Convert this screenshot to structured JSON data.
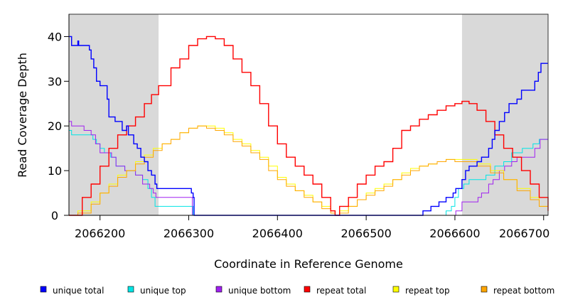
{
  "chart_data": {
    "type": "line",
    "title": "",
    "xlabel": "Coordinate in Reference Genome",
    "ylabel": "Read Coverage Depth",
    "xlim": [
      2066165,
      2066705
    ],
    "ylim": [
      0,
      45
    ],
    "x_ticks": [
      "2066200",
      "2066300",
      "2066400",
      "2066500",
      "2066600",
      "2066700"
    ],
    "y_ticks": [
      "0",
      "10",
      "20",
      "30",
      "40"
    ],
    "shaded_regions": [
      [
        2066165,
        2066266
      ],
      [
        2066608,
        2066705
      ]
    ],
    "grid": false,
    "legend_position": "bottom",
    "series": [
      {
        "name": "unique total",
        "color": "#0000ff",
        "points": [
          [
            2066165,
            40
          ],
          [
            2066168,
            38
          ],
          [
            2066175,
            39
          ],
          [
            2066176,
            38
          ],
          [
            2066188,
            37
          ],
          [
            2066190,
            35
          ],
          [
            2066193,
            33
          ],
          [
            2066196,
            30
          ],
          [
            2066200,
            29
          ],
          [
            2066208,
            26
          ],
          [
            2066210,
            22
          ],
          [
            2066217,
            21
          ],
          [
            2066225,
            19
          ],
          [
            2066230,
            20
          ],
          [
            2066232,
            18
          ],
          [
            2066238,
            16
          ],
          [
            2066242,
            15
          ],
          [
            2066246,
            13
          ],
          [
            2066250,
            12
          ],
          [
            2066254,
            10
          ],
          [
            2066258,
            9
          ],
          [
            2066262,
            7
          ],
          [
            2066264,
            6
          ],
          [
            2066300,
            6
          ],
          [
            2066303,
            5
          ],
          [
            2066305,
            4
          ],
          [
            2066306,
            0
          ],
          [
            2066563,
            0
          ],
          [
            2066564,
            1
          ],
          [
            2066573,
            2
          ],
          [
            2066582,
            3
          ],
          [
            2066590,
            4
          ],
          [
            2066598,
            5
          ],
          [
            2066601,
            6
          ],
          [
            2066608,
            8
          ],
          [
            2066612,
            10
          ],
          [
            2066616,
            11
          ],
          [
            2066625,
            12
          ],
          [
            2066630,
            13
          ],
          [
            2066638,
            15
          ],
          [
            2066642,
            17
          ],
          [
            2066645,
            19
          ],
          [
            2066650,
            21
          ],
          [
            2066656,
            23
          ],
          [
            2066661,
            25
          ],
          [
            2066670,
            26
          ],
          [
            2066675,
            28
          ],
          [
            2066690,
            30
          ],
          [
            2066694,
            32
          ],
          [
            2066697,
            34
          ],
          [
            2066705,
            34
          ]
        ]
      },
      {
        "name": "unique top",
        "color": "#00e5e5",
        "points": [
          [
            2066165,
            19
          ],
          [
            2066168,
            18
          ],
          [
            2066189,
            18
          ],
          [
            2066192,
            17
          ],
          [
            2066196,
            16
          ],
          [
            2066200,
            15
          ],
          [
            2066205,
            14
          ],
          [
            2066212,
            13
          ],
          [
            2066218,
            11
          ],
          [
            2066228,
            10
          ],
          [
            2066240,
            9
          ],
          [
            2066248,
            8
          ],
          [
            2066254,
            6
          ],
          [
            2066258,
            4
          ],
          [
            2066262,
            2
          ],
          [
            2066264,
            2
          ],
          [
            2066303,
            2
          ],
          [
            2066305,
            0
          ],
          [
            2066583,
            0
          ],
          [
            2066590,
            1
          ],
          [
            2066596,
            2
          ],
          [
            2066600,
            4
          ],
          [
            2066604,
            6
          ],
          [
            2066610,
            7
          ],
          [
            2066616,
            8
          ],
          [
            2066628,
            8
          ],
          [
            2066635,
            9
          ],
          [
            2066645,
            11
          ],
          [
            2066655,
            12
          ],
          [
            2066664,
            14
          ],
          [
            2066676,
            15
          ],
          [
            2066688,
            16
          ],
          [
            2066695,
            17
          ],
          [
            2066705,
            17
          ]
        ]
      },
      {
        "name": "unique bottom",
        "color": "#a020f0",
        "points": [
          [
            2066165,
            21
          ],
          [
            2066168,
            20
          ],
          [
            2066177,
            20
          ],
          [
            2066182,
            19
          ],
          [
            2066190,
            18
          ],
          [
            2066195,
            16
          ],
          [
            2066200,
            14
          ],
          [
            2066213,
            13
          ],
          [
            2066218,
            11
          ],
          [
            2066228,
            10
          ],
          [
            2066240,
            9
          ],
          [
            2066248,
            7
          ],
          [
            2066256,
            6
          ],
          [
            2066260,
            5
          ],
          [
            2066263,
            4
          ],
          [
            2066264,
            4
          ],
          [
            2066301,
            4
          ],
          [
            2066304,
            0
          ],
          [
            2066600,
            0
          ],
          [
            2066601,
            1
          ],
          [
            2066608,
            3
          ],
          [
            2066626,
            4
          ],
          [
            2066630,
            5
          ],
          [
            2066638,
            7
          ],
          [
            2066643,
            8
          ],
          [
            2066650,
            10
          ],
          [
            2066656,
            11
          ],
          [
            2066664,
            12
          ],
          [
            2066670,
            13
          ],
          [
            2066684,
            13
          ],
          [
            2066690,
            15
          ],
          [
            2066696,
            17
          ],
          [
            2066705,
            17
          ]
        ]
      },
      {
        "name": "repeat total",
        "color": "#ff0000",
        "points": [
          [
            2066165,
            0
          ],
          [
            2066170,
            0
          ],
          [
            2066180,
            4
          ],
          [
            2066190,
            7
          ],
          [
            2066200,
            11
          ],
          [
            2066210,
            15
          ],
          [
            2066220,
            18
          ],
          [
            2066230,
            20
          ],
          [
            2066240,
            22
          ],
          [
            2066250,
            25
          ],
          [
            2066258,
            27
          ],
          [
            2066266,
            29
          ],
          [
            2066280,
            33
          ],
          [
            2066290,
            35
          ],
          [
            2066300,
            38
          ],
          [
            2066310,
            39.5
          ],
          [
            2066320,
            40
          ],
          [
            2066330,
            39.5
          ],
          [
            2066340,
            38
          ],
          [
            2066350,
            35
          ],
          [
            2066360,
            32
          ],
          [
            2066370,
            29
          ],
          [
            2066380,
            25
          ],
          [
            2066390,
            20
          ],
          [
            2066400,
            16
          ],
          [
            2066410,
            13
          ],
          [
            2066420,
            11
          ],
          [
            2066430,
            9
          ],
          [
            2066440,
            7
          ],
          [
            2066450,
            4
          ],
          [
            2066460,
            1
          ],
          [
            2066465,
            0
          ],
          [
            2066470,
            2
          ],
          [
            2066480,
            4
          ],
          [
            2066490,
            7
          ],
          [
            2066500,
            9
          ],
          [
            2066510,
            11
          ],
          [
            2066520,
            12
          ],
          [
            2066530,
            15
          ],
          [
            2066540,
            19
          ],
          [
            2066550,
            20
          ],
          [
            2066560,
            21.5
          ],
          [
            2066570,
            22.5
          ],
          [
            2066580,
            23.5
          ],
          [
            2066590,
            24.5
          ],
          [
            2066600,
            25
          ],
          [
            2066608,
            25.5
          ],
          [
            2066616,
            25
          ],
          [
            2066625,
            23.5
          ],
          [
            2066635,
            21
          ],
          [
            2066645,
            18
          ],
          [
            2066655,
            15
          ],
          [
            2066665,
            13
          ],
          [
            2066675,
            10
          ],
          [
            2066685,
            7
          ],
          [
            2066695,
            4
          ],
          [
            2066705,
            1
          ]
        ]
      },
      {
        "name": "repeat top",
        "color": "#ffff00",
        "points": [
          [
            2066165,
            0
          ],
          [
            2066175,
            1
          ],
          [
            2066190,
            3
          ],
          [
            2066200,
            5
          ],
          [
            2066210,
            7
          ],
          [
            2066220,
            9
          ],
          [
            2066230,
            10
          ],
          [
            2066240,
            12
          ],
          [
            2066250,
            13.5
          ],
          [
            2066260,
            15
          ],
          [
            2066270,
            16
          ],
          [
            2066280,
            17
          ],
          [
            2066290,
            18.5
          ],
          [
            2066300,
            19.5
          ],
          [
            2066310,
            20
          ],
          [
            2066320,
            20
          ],
          [
            2066330,
            19.5
          ],
          [
            2066340,
            18.5
          ],
          [
            2066350,
            17
          ],
          [
            2066360,
            16
          ],
          [
            2066370,
            14.5
          ],
          [
            2066380,
            13
          ],
          [
            2066390,
            11
          ],
          [
            2066400,
            8.5
          ],
          [
            2066410,
            7
          ],
          [
            2066420,
            5.5
          ],
          [
            2066430,
            4.5
          ],
          [
            2066440,
            3
          ],
          [
            2066450,
            2
          ],
          [
            2066460,
            1
          ],
          [
            2066465,
            0
          ],
          [
            2066470,
            1
          ],
          [
            2066480,
            2
          ],
          [
            2066490,
            3.5
          ],
          [
            2066500,
            5
          ],
          [
            2066510,
            6
          ],
          [
            2066520,
            7
          ],
          [
            2066530,
            8
          ],
          [
            2066540,
            9.5
          ],
          [
            2066550,
            10.5
          ],
          [
            2066560,
            11
          ],
          [
            2066570,
            11.5
          ],
          [
            2066580,
            12
          ],
          [
            2066590,
            12.5
          ],
          [
            2066600,
            12.5
          ],
          [
            2066612,
            12.5
          ],
          [
            2066625,
            11.5
          ],
          [
            2066640,
            10
          ],
          [
            2066655,
            8
          ],
          [
            2066670,
            6
          ],
          [
            2066685,
            4
          ],
          [
            2066695,
            2
          ],
          [
            2066705,
            1
          ]
        ]
      },
      {
        "name": "repeat bottom",
        "color": "#ffa500",
        "points": [
          [
            2066165,
            0
          ],
          [
            2066175,
            0.5
          ],
          [
            2066190,
            2.5
          ],
          [
            2066200,
            5
          ],
          [
            2066210,
            6.5
          ],
          [
            2066220,
            8.5
          ],
          [
            2066230,
            10
          ],
          [
            2066240,
            11.5
          ],
          [
            2066250,
            13
          ],
          [
            2066260,
            14.5
          ],
          [
            2066270,
            16
          ],
          [
            2066280,
            17
          ],
          [
            2066290,
            18.5
          ],
          [
            2066300,
            19.5
          ],
          [
            2066310,
            20
          ],
          [
            2066320,
            19.5
          ],
          [
            2066330,
            19
          ],
          [
            2066340,
            18
          ],
          [
            2066350,
            16.5
          ],
          [
            2066360,
            15.5
          ],
          [
            2066370,
            14
          ],
          [
            2066380,
            12.5
          ],
          [
            2066390,
            10
          ],
          [
            2066400,
            8
          ],
          [
            2066410,
            6.5
          ],
          [
            2066420,
            5.5
          ],
          [
            2066430,
            4
          ],
          [
            2066440,
            3
          ],
          [
            2066450,
            1.5
          ],
          [
            2066460,
            0.5
          ],
          [
            2066465,
            0
          ],
          [
            2066470,
            0.5
          ],
          [
            2066480,
            2
          ],
          [
            2066490,
            3.5
          ],
          [
            2066500,
            4.5
          ],
          [
            2066510,
            5.5
          ],
          [
            2066520,
            6.5
          ],
          [
            2066530,
            8
          ],
          [
            2066540,
            9
          ],
          [
            2066550,
            10
          ],
          [
            2066560,
            11
          ],
          [
            2066570,
            11.5
          ],
          [
            2066580,
            12
          ],
          [
            2066590,
            12.5
          ],
          [
            2066600,
            12
          ],
          [
            2066612,
            12
          ],
          [
            2066625,
            11
          ],
          [
            2066640,
            9.5
          ],
          [
            2066655,
            8
          ],
          [
            2066670,
            5.5
          ],
          [
            2066685,
            3.5
          ],
          [
            2066695,
            2
          ],
          [
            2066705,
            0.5
          ]
        ]
      }
    ]
  },
  "colors": {
    "shading": "#d9d9d9",
    "frame": "#333333"
  }
}
